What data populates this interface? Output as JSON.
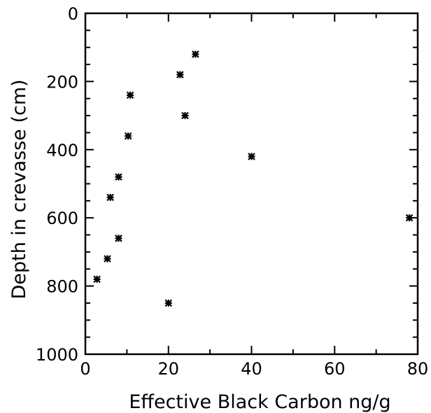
{
  "chart_data": {
    "type": "scatter",
    "title": "",
    "xlabel": "Effective Black Carbon ng/g",
    "ylabel": "Depth in crevasse (cm)",
    "xlim": [
      0,
      80
    ],
    "ylim": [
      0,
      1000
    ],
    "y_inverted": true,
    "grid": false,
    "x_ticks": [
      0,
      20,
      40,
      60,
      80
    ],
    "y_ticks": [
      0,
      200,
      400,
      600,
      800,
      1000
    ],
    "x_tick_labels": [
      "0",
      "20",
      "40",
      "60",
      "80"
    ],
    "y_tick_labels": [
      "0",
      "200",
      "400",
      "600",
      "800",
      "1000"
    ],
    "marker": "asterisk",
    "marker_color": "#000000",
    "points": [
      {
        "x": 26.5,
        "y": 120
      },
      {
        "x": 22.8,
        "y": 180
      },
      {
        "x": 10.8,
        "y": 240
      },
      {
        "x": 24.0,
        "y": 300
      },
      {
        "x": 10.3,
        "y": 360
      },
      {
        "x": 40.0,
        "y": 420
      },
      {
        "x": 8.0,
        "y": 480
      },
      {
        "x": 6.0,
        "y": 540
      },
      {
        "x": 78.0,
        "y": 600
      },
      {
        "x": 8.0,
        "y": 660
      },
      {
        "x": 5.3,
        "y": 720
      },
      {
        "x": 2.8,
        "y": 780
      },
      {
        "x": 20.0,
        "y": 850
      }
    ]
  }
}
